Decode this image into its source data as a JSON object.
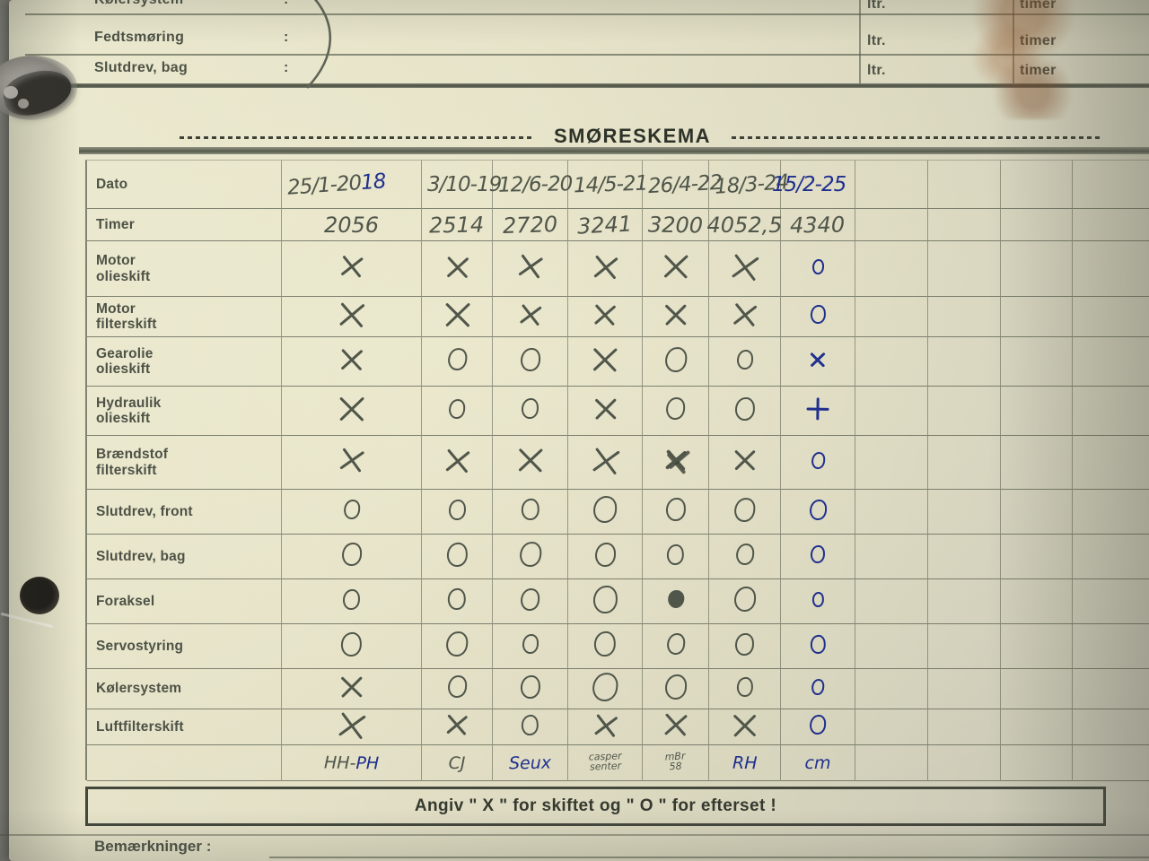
{
  "title": "SMØRESKEMA",
  "top_form": {
    "rows": [
      {
        "label": "Kølersystem",
        "colon": ":",
        "ltr": "ltr.",
        "timer": "timer"
      },
      {
        "label": "Fedtsmøring",
        "colon": ":",
        "ltr": "ltr.",
        "timer": "timer"
      },
      {
        "label": "Slutdrev, bag",
        "colon": ":",
        "ltr": "ltr.",
        "timer": "timer"
      }
    ]
  },
  "table": {
    "date_row_label": "Dato",
    "hour_row_label": "Timer",
    "dates": [
      [
        {
          "t": "25/1-20",
          "c": "p"
        },
        {
          "t": "18",
          "c": "b"
        }
      ],
      [
        {
          "t": "3/10-19",
          "c": "p"
        }
      ],
      [
        {
          "t": "12/6-20",
          "c": "p"
        }
      ],
      [
        {
          "t": "14/5-21",
          "c": "p"
        }
      ],
      [
        {
          "t": "26/4-22",
          "c": "p"
        }
      ],
      [
        {
          "t": "18/3-24",
          "c": "p"
        }
      ],
      [
        {
          "t": "15/2-25",
          "c": "b"
        }
      ]
    ],
    "hours": [
      "2056",
      "2514",
      "2720",
      "3241",
      "3200",
      "4052,5",
      "4340"
    ],
    "service_rows": [
      {
        "label": "Motor\nolieskift",
        "marks": [
          "X",
          "X",
          "X",
          "X",
          "X",
          "X",
          "Ob"
        ]
      },
      {
        "label": "Motor\nfilterskift",
        "marks": [
          "X",
          "X",
          "X",
          "X",
          "X",
          "X",
          "Ob"
        ]
      },
      {
        "label": "Gearolie\nolieskift",
        "marks": [
          "X",
          "O",
          "O",
          "X",
          "O",
          "O",
          "Xb"
        ]
      },
      {
        "label": "Hydraulik\nolieskift",
        "marks": [
          "X",
          "O",
          "O",
          "X",
          "O",
          "O",
          "+b"
        ]
      },
      {
        "label": "Brændstof\nfilterskift",
        "marks": [
          "X",
          "X",
          "X",
          "X",
          "X2",
          "X",
          "Ob"
        ]
      },
      {
        "label": "Slutdrev, front",
        "marks": [
          "O",
          "O",
          "O",
          "O",
          "O",
          "O",
          "Ob"
        ]
      },
      {
        "label": "Slutdrev, bag",
        "marks": [
          "O",
          "O",
          "O",
          "O",
          "O",
          "O",
          "Ob"
        ]
      },
      {
        "label": "Foraksel",
        "marks": [
          "O",
          "O",
          "O",
          "O",
          "Of",
          "O",
          "Ob"
        ]
      },
      {
        "label": "Servostyring",
        "marks": [
          "O",
          "O",
          "O",
          "O",
          "O",
          "O",
          "Ob"
        ]
      },
      {
        "label": "Kølersystem",
        "marks": [
          "X",
          "O",
          "O",
          "O",
          "O",
          "O",
          "Ob"
        ]
      },
      {
        "label": "Luftfilterskift",
        "marks": [
          "X",
          "X",
          "O",
          "X",
          "X",
          "X",
          "Ob"
        ]
      }
    ],
    "signatures": [
      [
        {
          "t": "HH-",
          "c": "p"
        },
        {
          "t": "PH",
          "c": "b"
        }
      ],
      [
        {
          "t": "CJ",
          "c": "p"
        }
      ],
      [
        {
          "t": "Seux",
          "c": "b"
        }
      ],
      [
        {
          "t": "casper\nsenter",
          "c": "p"
        }
      ],
      [
        {
          "t": "mBr\n58",
          "c": "p"
        }
      ],
      [
        {
          "t": "RH",
          "c": "b"
        }
      ],
      [
        {
          "t": "cm",
          "c": "b"
        }
      ]
    ]
  },
  "legend": "Angiv \" X \" for skiftet og \" O \" for efterset !",
  "remarks_label": "Bemærkninger :",
  "colors": {
    "pencil": "#50564a",
    "ink": "#20308d",
    "line": "#585d4d",
    "paper": "#e3e0c6",
    "stain": "#87481e"
  }
}
